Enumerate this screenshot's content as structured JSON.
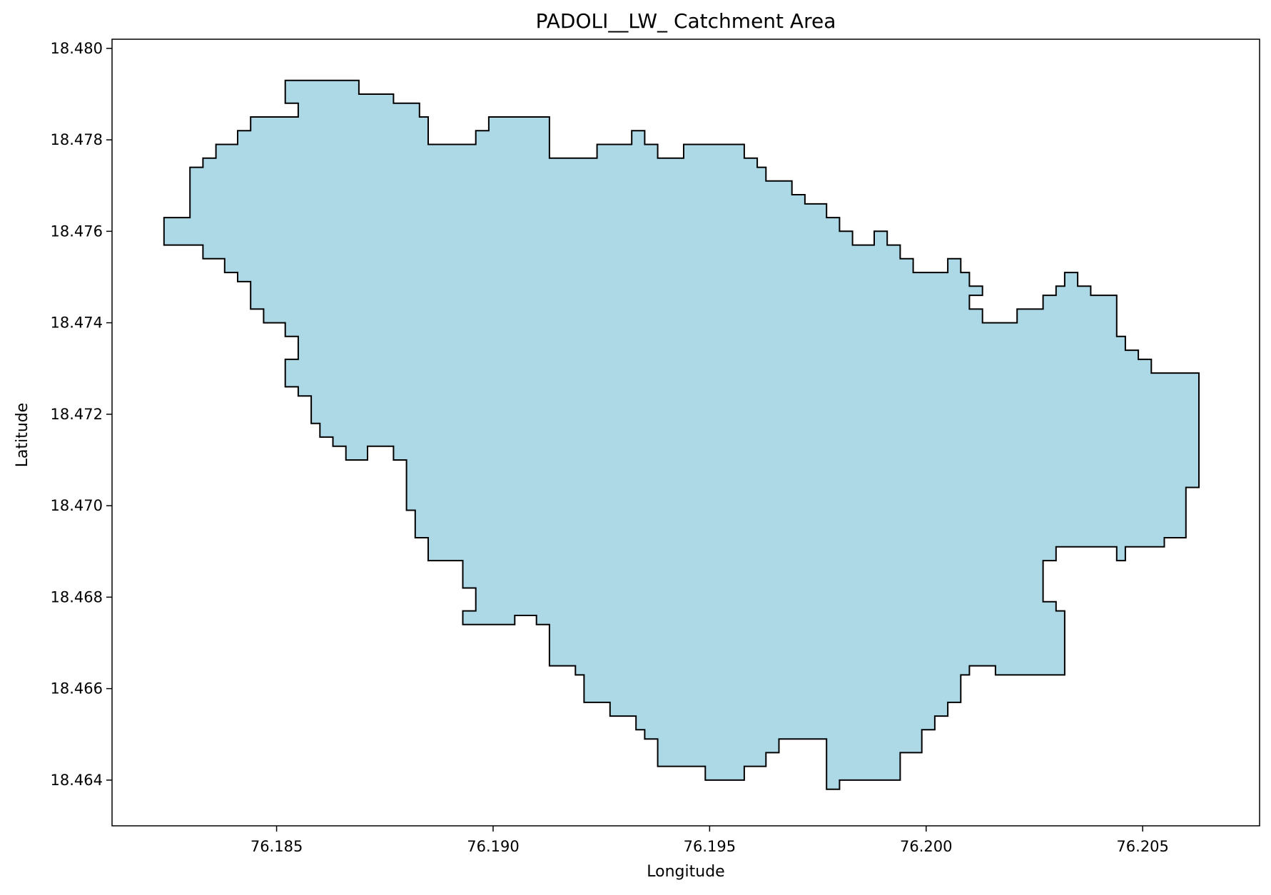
{
  "chart_data": {
    "type": "area",
    "title": "PADOLI__LW_ Catchment Area",
    "xlabel": "Longitude",
    "ylabel": "Latitude",
    "xlim": [
      76.1812,
      76.2077
    ],
    "ylim": [
      18.463,
      18.4802
    ],
    "xticks": [
      {
        "value": 76.185,
        "label": "76.185"
      },
      {
        "value": 76.19,
        "label": "76.190"
      },
      {
        "value": 76.195,
        "label": "76.195"
      },
      {
        "value": 76.2,
        "label": "76.200"
      },
      {
        "value": 76.205,
        "label": "76.205"
      }
    ],
    "yticks": [
      {
        "value": 18.464,
        "label": "18.464"
      },
      {
        "value": 18.466,
        "label": "18.466"
      },
      {
        "value": 18.468,
        "label": "18.468"
      },
      {
        "value": 18.47,
        "label": "18.470"
      },
      {
        "value": 18.472,
        "label": "18.472"
      },
      {
        "value": 18.474,
        "label": "18.474"
      },
      {
        "value": 18.476,
        "label": "18.476"
      },
      {
        "value": 18.478,
        "label": "18.478"
      },
      {
        "value": 18.48,
        "label": "18.480"
      }
    ],
    "grid": false,
    "fill_color": "#add8e6",
    "edge_color": "#000000",
    "polygon": [
      [
        76.1824,
        18.4763
      ],
      [
        76.183,
        18.4763
      ],
      [
        76.183,
        18.4774
      ],
      [
        76.1833,
        18.4774
      ],
      [
        76.1833,
        18.4776
      ],
      [
        76.1836,
        18.4776
      ],
      [
        76.1836,
        18.4779
      ],
      [
        76.1841,
        18.4779
      ],
      [
        76.1841,
        18.4782
      ],
      [
        76.1844,
        18.4782
      ],
      [
        76.1844,
        18.4785
      ],
      [
        76.1855,
        18.4785
      ],
      [
        76.1855,
        18.4788
      ],
      [
        76.1852,
        18.4788
      ],
      [
        76.1852,
        18.4793
      ],
      [
        76.1869,
        18.4793
      ],
      [
        76.1869,
        18.479
      ],
      [
        76.1877,
        18.479
      ],
      [
        76.1877,
        18.4788
      ],
      [
        76.1883,
        18.4788
      ],
      [
        76.1883,
        18.4785
      ],
      [
        76.1885,
        18.4785
      ],
      [
        76.1885,
        18.4779
      ],
      [
        76.1896,
        18.4779
      ],
      [
        76.1896,
        18.4782
      ],
      [
        76.1899,
        18.4782
      ],
      [
        76.1899,
        18.4785
      ],
      [
        76.1913,
        18.4785
      ],
      [
        76.1913,
        18.4776
      ],
      [
        76.1924,
        18.4776
      ],
      [
        76.1924,
        18.4779
      ],
      [
        76.1932,
        18.4779
      ],
      [
        76.1932,
        18.4782
      ],
      [
        76.1935,
        18.4782
      ],
      [
        76.1935,
        18.4779
      ],
      [
        76.1938,
        18.4779
      ],
      [
        76.1938,
        18.4776
      ],
      [
        76.1944,
        18.4776
      ],
      [
        76.1944,
        18.4779
      ],
      [
        76.1958,
        18.4779
      ],
      [
        76.1958,
        18.4776
      ],
      [
        76.1961,
        18.4776
      ],
      [
        76.1961,
        18.4774
      ],
      [
        76.1963,
        18.4774
      ],
      [
        76.1963,
        18.4771
      ],
      [
        76.1969,
        18.4771
      ],
      [
        76.1969,
        18.4768
      ],
      [
        76.1972,
        18.4768
      ],
      [
        76.1972,
        18.4766
      ],
      [
        76.1977,
        18.4766
      ],
      [
        76.1977,
        18.4763
      ],
      [
        76.198,
        18.4763
      ],
      [
        76.198,
        18.476
      ],
      [
        76.1983,
        18.476
      ],
      [
        76.1983,
        18.4757
      ],
      [
        76.1988,
        18.4757
      ],
      [
        76.1988,
        18.476
      ],
      [
        76.1991,
        18.476
      ],
      [
        76.1991,
        18.4757
      ],
      [
        76.1994,
        18.4757
      ],
      [
        76.1994,
        18.4754
      ],
      [
        76.1997,
        18.4754
      ],
      [
        76.1997,
        18.4751
      ],
      [
        76.2005,
        18.4751
      ],
      [
        76.2005,
        18.4754
      ],
      [
        76.2008,
        18.4754
      ],
      [
        76.2008,
        18.4751
      ],
      [
        76.201,
        18.4751
      ],
      [
        76.201,
        18.4748
      ],
      [
        76.2013,
        18.4748
      ],
      [
        76.2013,
        18.4746
      ],
      [
        76.201,
        18.4746
      ],
      [
        76.201,
        18.4743
      ],
      [
        76.2013,
        18.4743
      ],
      [
        76.2013,
        18.474
      ],
      [
        76.2021,
        18.474
      ],
      [
        76.2021,
        18.4743
      ],
      [
        76.2027,
        18.4743
      ],
      [
        76.2027,
        18.4746
      ],
      [
        76.203,
        18.4746
      ],
      [
        76.203,
        18.4748
      ],
      [
        76.2032,
        18.4748
      ],
      [
        76.2032,
        18.4751
      ],
      [
        76.2035,
        18.4751
      ],
      [
        76.2035,
        18.4748
      ],
      [
        76.2038,
        18.4748
      ],
      [
        76.2038,
        18.4746
      ],
      [
        76.2044,
        18.4746
      ],
      [
        76.2044,
        18.4737
      ],
      [
        76.2046,
        18.4737
      ],
      [
        76.2046,
        18.4734
      ],
      [
        76.2049,
        18.4734
      ],
      [
        76.2049,
        18.4732
      ],
      [
        76.2052,
        18.4732
      ],
      [
        76.2052,
        18.4729
      ],
      [
        76.2063,
        18.4729
      ],
      [
        76.2063,
        18.4704
      ],
      [
        76.206,
        18.4704
      ],
      [
        76.206,
        18.4693
      ],
      [
        76.2055,
        18.4693
      ],
      [
        76.2055,
        18.4691
      ],
      [
        76.2046,
        18.4691
      ],
      [
        76.2046,
        18.4688
      ],
      [
        76.2044,
        18.4688
      ],
      [
        76.2044,
        18.4691
      ],
      [
        76.203,
        18.4691
      ],
      [
        76.203,
        18.4688
      ],
      [
        76.2027,
        18.4688
      ],
      [
        76.2027,
        18.4679
      ],
      [
        76.203,
        18.4679
      ],
      [
        76.203,
        18.4677
      ],
      [
        76.2032,
        18.4677
      ],
      [
        76.2032,
        18.4663
      ],
      [
        76.2016,
        18.4663
      ],
      [
        76.2016,
        18.4665
      ],
      [
        76.201,
        18.4665
      ],
      [
        76.201,
        18.4663
      ],
      [
        76.2008,
        18.4663
      ],
      [
        76.2008,
        18.4657
      ],
      [
        76.2005,
        18.4657
      ],
      [
        76.2005,
        18.4654
      ],
      [
        76.2002,
        18.4654
      ],
      [
        76.2002,
        18.4651
      ],
      [
        76.1999,
        18.4651
      ],
      [
        76.1999,
        18.4646
      ],
      [
        76.1994,
        18.4646
      ],
      [
        76.1994,
        18.464
      ],
      [
        76.198,
        18.464
      ],
      [
        76.198,
        18.4638
      ],
      [
        76.1977,
        18.4638
      ],
      [
        76.1977,
        18.4649
      ],
      [
        76.1966,
        18.4649
      ],
      [
        76.1966,
        18.4646
      ],
      [
        76.1963,
        18.4646
      ],
      [
        76.1963,
        18.4643
      ],
      [
        76.1958,
        18.4643
      ],
      [
        76.1958,
        18.464
      ],
      [
        76.1949,
        18.464
      ],
      [
        76.1949,
        18.4643
      ],
      [
        76.1938,
        18.4643
      ],
      [
        76.1938,
        18.4649
      ],
      [
        76.1935,
        18.4649
      ],
      [
        76.1935,
        18.4651
      ],
      [
        76.1933,
        18.4651
      ],
      [
        76.1933,
        18.4654
      ],
      [
        76.1927,
        18.4654
      ],
      [
        76.1927,
        18.4657
      ],
      [
        76.1921,
        18.4657
      ],
      [
        76.1921,
        18.4663
      ],
      [
        76.1919,
        18.4663
      ],
      [
        76.1919,
        18.4665
      ],
      [
        76.1913,
        18.4665
      ],
      [
        76.1913,
        18.4674
      ],
      [
        76.191,
        18.4674
      ],
      [
        76.191,
        18.4676
      ],
      [
        76.1905,
        18.4676
      ],
      [
        76.1905,
        18.4674
      ],
      [
        76.1893,
        18.4674
      ],
      [
        76.1893,
        18.4677
      ],
      [
        76.1896,
        18.4677
      ],
      [
        76.1896,
        18.4682
      ],
      [
        76.1893,
        18.4682
      ],
      [
        76.1893,
        18.4688
      ],
      [
        76.1885,
        18.4688
      ],
      [
        76.1885,
        18.4693
      ],
      [
        76.1882,
        18.4693
      ],
      [
        76.1882,
        18.4699
      ],
      [
        76.188,
        18.4699
      ],
      [
        76.188,
        18.471
      ],
      [
        76.1877,
        18.471
      ],
      [
        76.1877,
        18.4713
      ],
      [
        76.1871,
        18.4713
      ],
      [
        76.1871,
        18.471
      ],
      [
        76.1866,
        18.471
      ],
      [
        76.1866,
        18.4713
      ],
      [
        76.1863,
        18.4713
      ],
      [
        76.1863,
        18.4715
      ],
      [
        76.186,
        18.4715
      ],
      [
        76.186,
        18.4718
      ],
      [
        76.1858,
        18.4718
      ],
      [
        76.1858,
        18.4724
      ],
      [
        76.1855,
        18.4724
      ],
      [
        76.1855,
        18.4726
      ],
      [
        76.1852,
        18.4726
      ],
      [
        76.1852,
        18.4732
      ],
      [
        76.1855,
        18.4732
      ],
      [
        76.1855,
        18.4737
      ],
      [
        76.1852,
        18.4737
      ],
      [
        76.1852,
        18.474
      ],
      [
        76.1847,
        18.474
      ],
      [
        76.1847,
        18.4743
      ],
      [
        76.1844,
        18.4743
      ],
      [
        76.1844,
        18.4749
      ],
      [
        76.1841,
        18.4749
      ],
      [
        76.1841,
        18.4751
      ],
      [
        76.1838,
        18.4751
      ],
      [
        76.1838,
        18.4754
      ],
      [
        76.1833,
        18.4754
      ],
      [
        76.1833,
        18.4757
      ],
      [
        76.1824,
        18.4757
      ]
    ]
  }
}
